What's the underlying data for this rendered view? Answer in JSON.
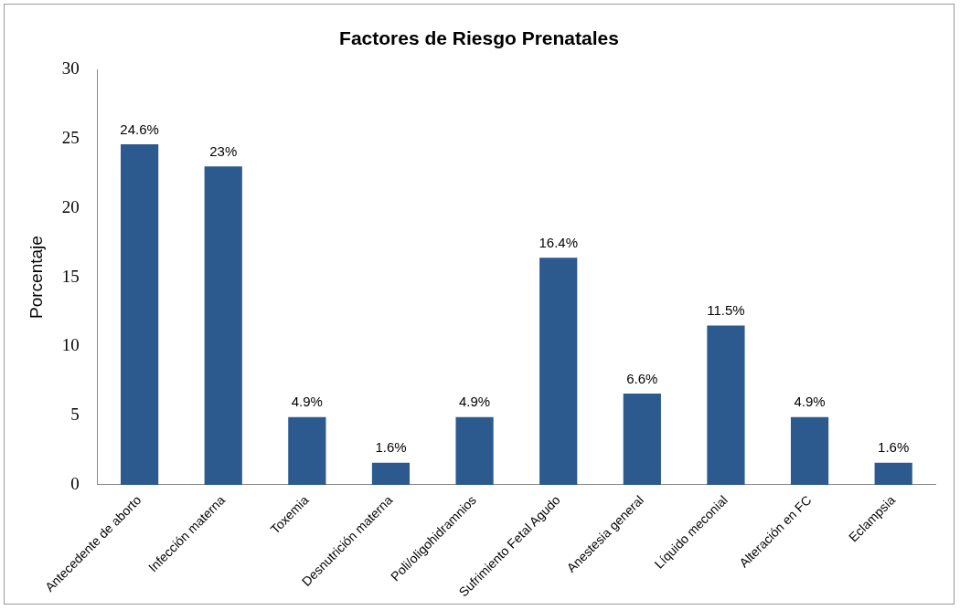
{
  "chart_data": {
    "type": "bar",
    "title": "Factores de Riesgo Prenatales",
    "ylabel": "Porcentaje",
    "categories": [
      "Antecedente de aborto",
      "Infección materna",
      "Toxemia",
      "Desnutrición materna",
      "Poli/oligohidramnios",
      "Sufrimiento Fetal Agudo",
      "Anestesia general",
      "Líquido meconial",
      "Alteración en FC",
      "Eclampsia"
    ],
    "values": [
      24.6,
      23,
      4.9,
      1.6,
      4.9,
      16.4,
      6.6,
      11.5,
      4.9,
      1.6
    ],
    "value_labels": [
      "24.6%",
      "23%",
      "4.9%",
      "1.6%",
      "4.9%",
      "16.4%",
      "6.6%",
      "11.5%",
      "4.9%",
      "1.6%"
    ],
    "color": "#2c5a8f",
    "ylim": [
      0,
      30
    ],
    "yticks": [
      0,
      5,
      10,
      15,
      20,
      25,
      30
    ],
    "grid": false,
    "legend": false
  }
}
